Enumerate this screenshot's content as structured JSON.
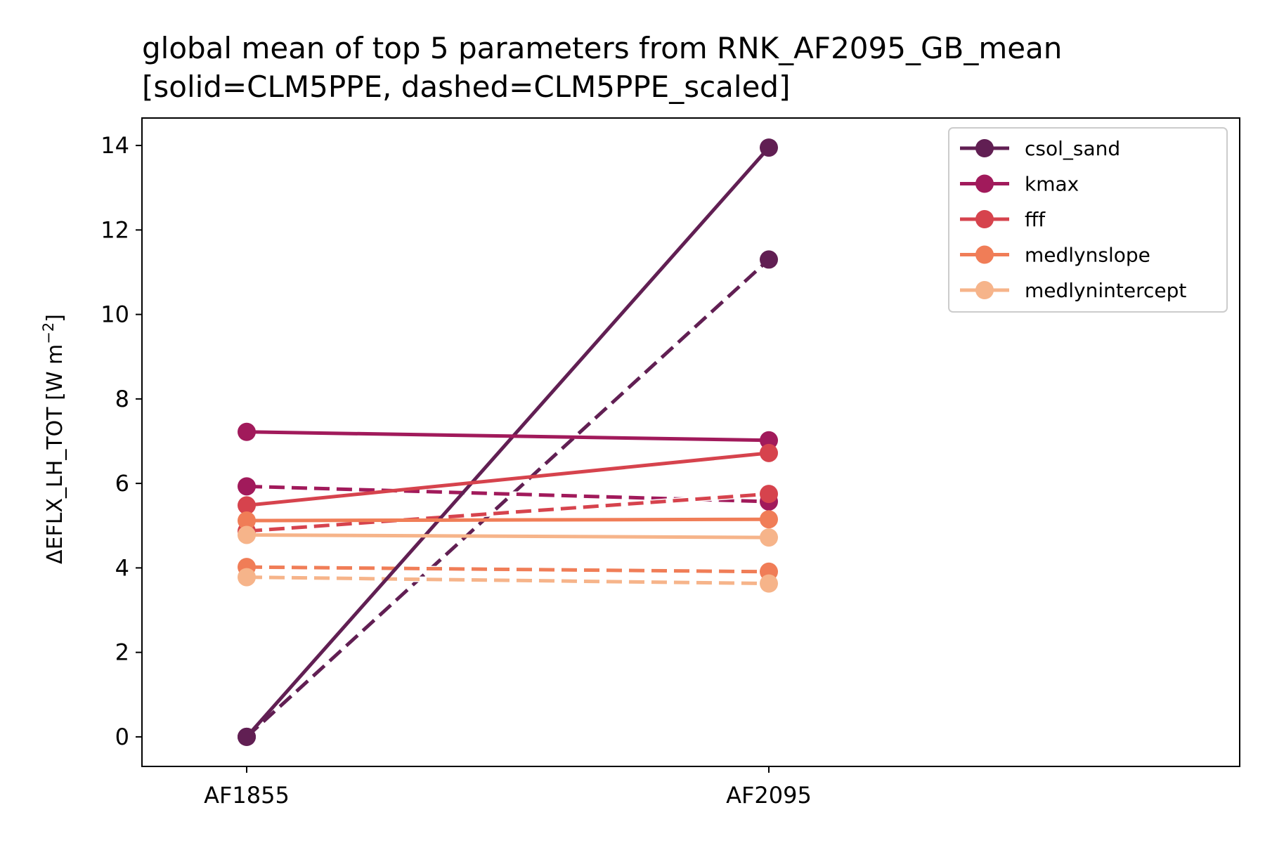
{
  "chart_data": {
    "type": "line",
    "title_line1": "global mean of top 5 parameters from RNK_AF2095_GB_mean",
    "title_line2": "[solid=CLM5PPE, dashed=CLM5PPE_scaled]",
    "xlabel": "",
    "ylabel": "ΔEFLX_LH_TOT [W m",
    "ylabel_sup": "−2",
    "ylabel_end": "]",
    "categories": [
      "AF1855",
      "AF2095"
    ],
    "yticks": [
      "0",
      "2",
      "4",
      "6",
      "8",
      "10",
      "12",
      "14"
    ],
    "ylim": [
      -0.7,
      14.65
    ],
    "grid": false,
    "legend_position": "upper right",
    "series": [
      {
        "name": "csol_sand",
        "color": "#611f53",
        "solid": [
          0,
          13.95
        ],
        "dashed": [
          0,
          11.3
        ]
      },
      {
        "name": "kmax",
        "color": "#a11a5b",
        "solid": [
          7.22,
          7.02
        ],
        "dashed": [
          5.93,
          5.57
        ]
      },
      {
        "name": "fff",
        "color": "#d6434d",
        "solid": [
          5.48,
          6.72
        ],
        "dashed": [
          4.87,
          5.75
        ]
      },
      {
        "name": "medlynslope",
        "color": "#f07d57",
        "solid": [
          5.12,
          5.15
        ],
        "dashed": [
          4.02,
          3.91
        ]
      },
      {
        "name": "medlynintercept",
        "color": "#f6b48a",
        "solid": [
          4.78,
          4.72
        ],
        "dashed": [
          3.78,
          3.63
        ]
      }
    ]
  }
}
